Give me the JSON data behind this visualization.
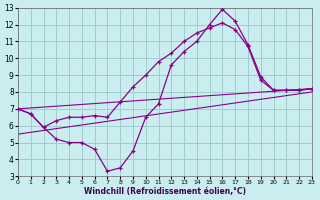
{
  "xlabel": "Windchill (Refroidissement éolien,°C)",
  "xlim": [
    0,
    23
  ],
  "ylim": [
    3,
    13
  ],
  "xticks": [
    0,
    1,
    2,
    3,
    4,
    5,
    6,
    7,
    8,
    9,
    10,
    11,
    12,
    13,
    14,
    15,
    16,
    17,
    18,
    19,
    20,
    21,
    22,
    23
  ],
  "yticks": [
    3,
    4,
    5,
    6,
    7,
    8,
    9,
    10,
    11,
    12,
    13
  ],
  "bg_color": "#caeef0",
  "grid_color": "#a0cccc",
  "line_color": "#880088",
  "line1_x": [
    0,
    1,
    2,
    3,
    4,
    5,
    6,
    7,
    8,
    9,
    10,
    11,
    12,
    13,
    14,
    15,
    16,
    17,
    18,
    19,
    20,
    21,
    22,
    23
  ],
  "line1_y": [
    7.0,
    6.7,
    5.9,
    5.2,
    5.0,
    5.0,
    4.6,
    3.3,
    3.5,
    4.5,
    6.5,
    7.3,
    9.6,
    10.4,
    11.0,
    12.0,
    12.9,
    12.2,
    10.8,
    8.9,
    8.1,
    8.1,
    8.1,
    8.2
  ],
  "line2_x": [
    0,
    1,
    2,
    3,
    4,
    5,
    6,
    7,
    8,
    9,
    10,
    11,
    12,
    13,
    14,
    15,
    16,
    17,
    18,
    19,
    20,
    21,
    22,
    23
  ],
  "line2_y": [
    7.0,
    6.7,
    5.9,
    6.3,
    6.5,
    6.5,
    6.6,
    6.5,
    7.4,
    8.3,
    9.0,
    9.8,
    10.3,
    11.0,
    11.5,
    11.8,
    12.1,
    11.7,
    10.7,
    8.7,
    8.1,
    8.1,
    8.1,
    8.2
  ],
  "line3_x": [
    0,
    23
  ],
  "line3_y": [
    7.0,
    8.2
  ],
  "line4_x": [
    0,
    23
  ],
  "line4_y": [
    5.5,
    8.0
  ]
}
